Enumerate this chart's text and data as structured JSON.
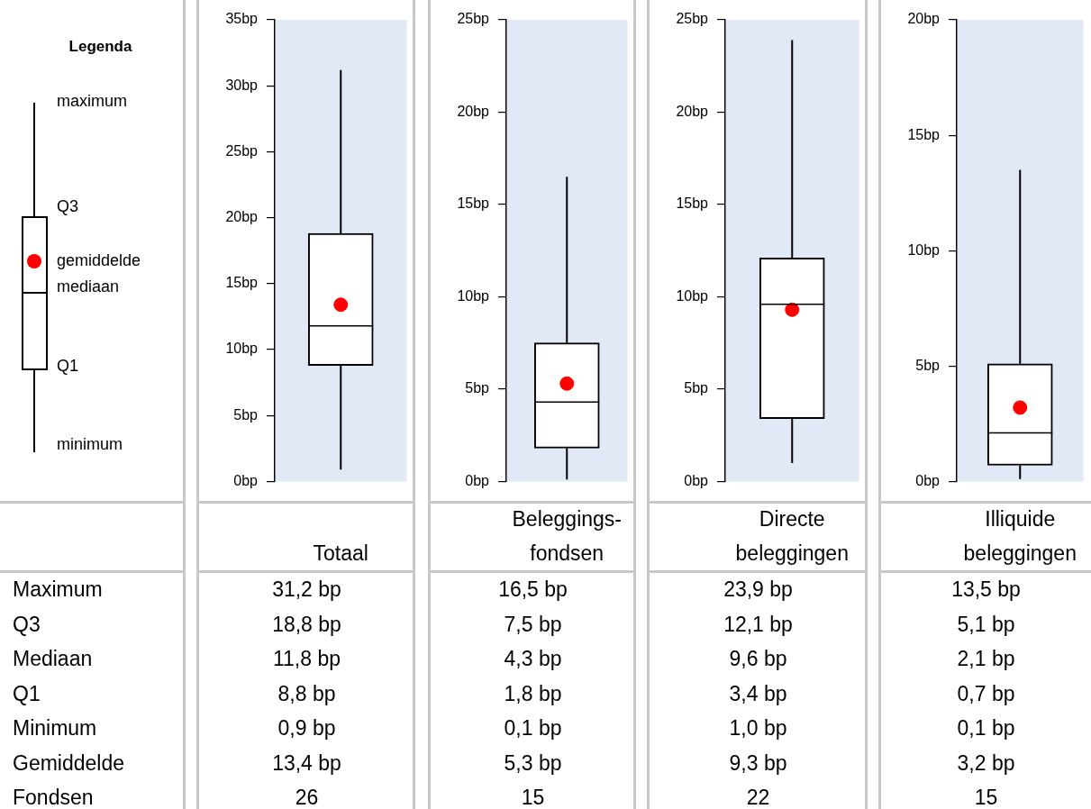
{
  "chart_data": [
    {
      "type": "other",
      "title": "Legenda",
      "annotations": [
        "maximum",
        "Q3",
        "gemiddelde",
        "mediaan",
        "Q1",
        "minimum"
      ]
    },
    {
      "type": "box",
      "categories": [
        "Totaal"
      ],
      "boxes": [
        {
          "low": 0.9,
          "q1": 8.8,
          "median": 11.8,
          "q3": 18.8,
          "high": 31.2,
          "mean": 13.4
        }
      ],
      "ylim": [
        0,
        35
      ],
      "yticks": [
        {
          "value": 0,
          "label": "0bp"
        },
        {
          "value": 5,
          "label": "5bp"
        },
        {
          "value": 10,
          "label": "10bp"
        },
        {
          "value": 15,
          "label": "15bp"
        },
        {
          "value": 20,
          "label": "20bp"
        },
        {
          "value": 25,
          "label": "25bp"
        },
        {
          "value": 30,
          "label": "30bp"
        },
        {
          "value": 35,
          "label": "35bp"
        }
      ],
      "tick_labels": "y",
      "annotations": [
        "31,2 bp",
        "18,8 bp",
        "11,8 bp",
        "8,8 bp",
        "0,9 bp",
        "13,4 bp",
        "26"
      ]
    },
    {
      "type": "box",
      "categories": [
        "Beleggings- fondsen"
      ],
      "boxes": [
        {
          "low": 0.1,
          "q1": 1.8,
          "median": 4.3,
          "q3": 7.5,
          "high": 16.5,
          "mean": 5.3
        }
      ],
      "ylim": [
        0,
        25
      ],
      "yticks": [
        {
          "value": 0,
          "label": "0bp"
        },
        {
          "value": 5,
          "label": "5bp"
        },
        {
          "value": 10,
          "label": "10bp"
        },
        {
          "value": 15,
          "label": "15bp"
        },
        {
          "value": 20,
          "label": "20bp"
        },
        {
          "value": 25,
          "label": "25bp"
        }
      ],
      "tick_labels": "y",
      "annotations": [
        "16,5 bp",
        "7,5 bp",
        "4,3 bp",
        "1,8 bp",
        "0,1 bp",
        "5,3 bp",
        "15"
      ]
    },
    {
      "type": "box",
      "categories": [
        "Directe beleggingen"
      ],
      "boxes": [
        {
          "low": 1.0,
          "q1": 3.4,
          "median": 9.6,
          "q3": 12.1,
          "high": 23.9,
          "mean": 9.3
        }
      ],
      "ylim": [
        0,
        25
      ],
      "yticks": [
        {
          "value": 0,
          "label": "0bp"
        },
        {
          "value": 5,
          "label": "5bp"
        },
        {
          "value": 10,
          "label": "10bp"
        },
        {
          "value": 15,
          "label": "15bp"
        },
        {
          "value": 20,
          "label": "20bp"
        },
        {
          "value": 25,
          "label": "25bp"
        }
      ],
      "tick_labels": "y",
      "annotations": [
        "23,9 bp",
        "12,1 bp",
        "9,6 bp",
        "3,4 bp",
        "1,0 bp",
        "9,3 bp",
        "22"
      ]
    },
    {
      "type": "box",
      "categories": [
        "Illiquide beleggingen"
      ],
      "boxes": [
        {
          "low": 0.1,
          "q1": 0.7,
          "median": 2.1,
          "q3": 5.1,
          "high": 13.5,
          "mean": 3.2
        }
      ],
      "ylim": [
        0,
        20
      ],
      "yticks": [
        {
          "value": 0,
          "label": "0bp"
        },
        {
          "value": 5,
          "label": "5bp"
        },
        {
          "value": 10,
          "label": "10bp"
        },
        {
          "value": 15,
          "label": "15bp"
        },
        {
          "value": 20,
          "label": "20bp"
        }
      ],
      "tick_labels": "y",
      "annotations": [
        "13,5 bp",
        "5,1 bp",
        "2,1 bp",
        "0,7 bp",
        "0,1 bp",
        "3,2 bp",
        "15"
      ]
    },
    {
      "type": "other",
      "annotations": [
        "Maximum",
        "Q3",
        "Mediaan",
        "Q1",
        "Minimum",
        "Gemiddelde",
        "Fondsen"
      ]
    }
  ]
}
